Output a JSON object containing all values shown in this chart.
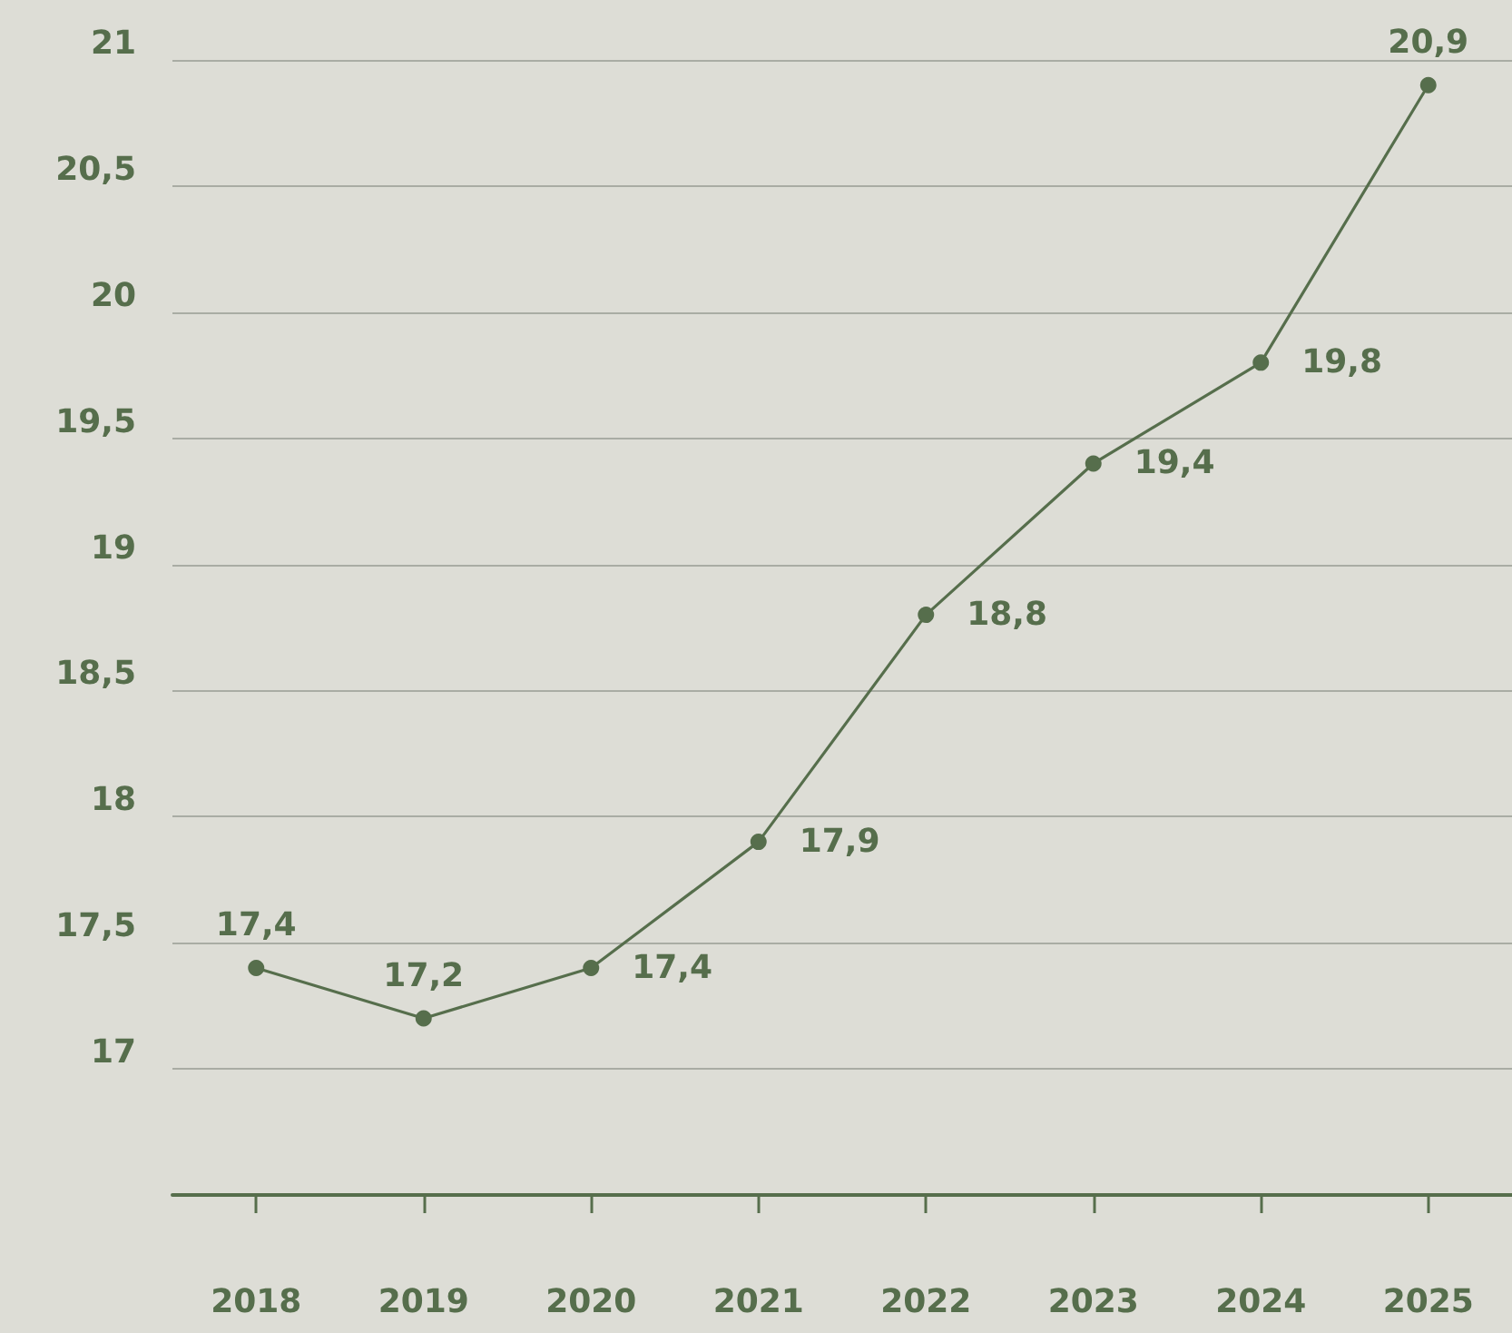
{
  "chart_data": {
    "type": "line",
    "categories": [
      "2018",
      "2019",
      "2020",
      "2021",
      "2022",
      "2023",
      "2024",
      "2025"
    ],
    "series": [
      {
        "color": "#566e4c",
        "values": [
          17.4,
          17.2,
          17.4,
          17.9,
          18.8,
          19.4,
          19.8,
          20.9
        ],
        "value_labels": [
          "17,4",
          "17,2",
          "17,4",
          "17,9",
          "18,8",
          "19,4",
          "19,8",
          "20,9"
        ]
      }
    ],
    "ylim": [
      16.5,
      21
    ],
    "yticks": [
      {
        "value": 17,
        "label": "17"
      },
      {
        "value": 17.5,
        "label": "17,5"
      },
      {
        "value": 18,
        "label": "18"
      },
      {
        "value": 18.5,
        "label": "18,5"
      },
      {
        "value": 19,
        "label": "19"
      },
      {
        "value": 19.5,
        "label": "19,5"
      },
      {
        "value": 20,
        "label": "20"
      },
      {
        "value": 20.5,
        "label": "20,5"
      },
      {
        "value": 21,
        "label": "21"
      }
    ],
    "grid": "y",
    "marker": "circle",
    "line_style": "solid"
  }
}
